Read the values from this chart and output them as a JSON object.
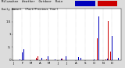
{
  "title": "Milwaukee  Weather  Outdoor  Rain",
  "subtitle": "Daily Amount  (Past/Previous Year)",
  "num_days": 365,
  "background_color": "#dcdcdc",
  "plot_bg": "#ffffff",
  "bar_color_current": "#0000bb",
  "bar_color_prev": "#cc0000",
  "ylim": [
    0,
    2.0
  ],
  "yticks": [
    0.0,
    0.5,
    1.0,
    1.5
  ],
  "ytick_labels": [
    "0",
    ".5",
    "1",
    "1.5"
  ],
  "month_starts": [
    0,
    31,
    59,
    90,
    120,
    151,
    181,
    212,
    243,
    273,
    304,
    334
  ],
  "month_labels": [
    "J",
    "F",
    "M",
    "A",
    "M",
    "J",
    "J",
    "A",
    "S",
    "O",
    "N",
    "D"
  ],
  "seed_current": 42,
  "seed_prev": 99
}
